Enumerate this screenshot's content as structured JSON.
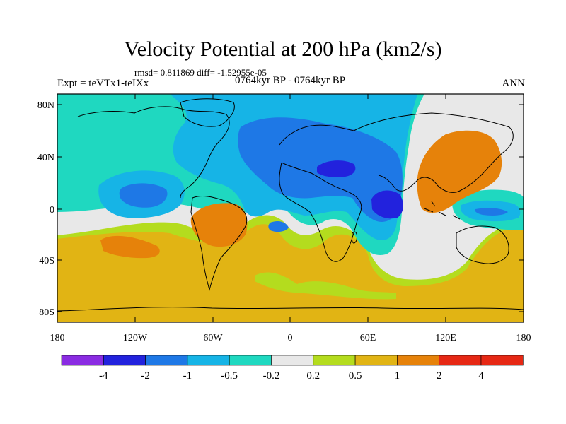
{
  "title": "Velocity Potential at 200 hPa (km2/s)",
  "stats": "rmsd= 0.811869 diff= -1.52955e-05",
  "period": "0764kyr BP - 0764kyr BP",
  "experiment": "Expt = teVTx1-teIXx",
  "season": "ANN",
  "lat_labels": [
    "80N",
    "40N",
    "0",
    "40S",
    "80S"
  ],
  "lon_labels": [
    "180",
    "120W",
    "60W",
    "0",
    "60E",
    "120E",
    "180"
  ],
  "colorbar": {
    "boundaries": [
      "-4",
      "-2",
      "-1",
      "-0.5",
      "-0.2",
      "0.2",
      "0.5",
      "1",
      "2",
      "4"
    ],
    "colors": [
      "#8a2be2",
      "#2222dd",
      "#1e78e6",
      "#16b4e6",
      "#1fd8c0",
      "#e8e8e8",
      "#b4dc1e",
      "#e1b414",
      "#e6820a",
      "#e62814"
    ]
  },
  "fill_colors": {
    "level_m4": "#8a2be2",
    "level_m2": "#2222dd",
    "level_m1": "#1e78e6",
    "level_m05": "#16b4e6",
    "level_m02": "#1fd8c0",
    "level_0": "#e8e8e8",
    "level_02": "#b4dc1e",
    "level_05": "#e1b414",
    "level_1": "#e6820a"
  }
}
